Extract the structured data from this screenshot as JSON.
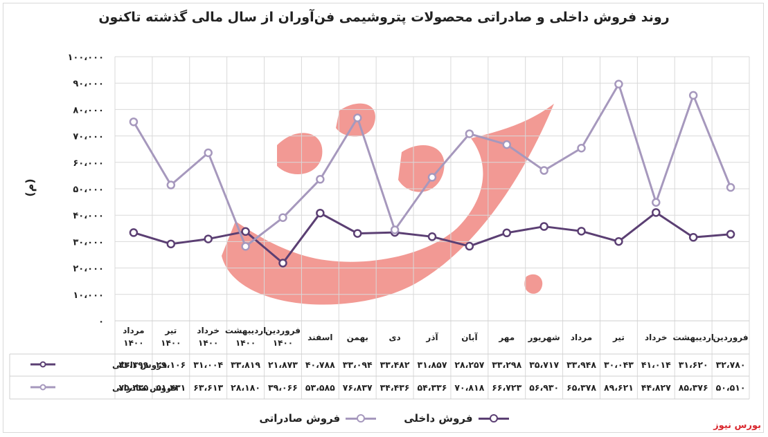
{
  "chart_data": {
    "type": "line",
    "title": "روند فروش داخلی و صادراتی محصولات پتروشیمی فن‌آوران از سال مالی گذشته تاکنون",
    "ylabel": "(م)",
    "ylim": [
      0,
      100000
    ],
    "yticks": [
      "۱۰۰،۰۰۰",
      "۹۰،۰۰۰",
      "۸۰،۰۰۰",
      "۷۰،۰۰۰",
      "۶۰،۰۰۰",
      "۵۰،۰۰۰",
      "۴۰،۰۰۰",
      "۳۰،۰۰۰",
      "۲۰،۰۰۰",
      "۱۰،۰۰۰",
      "۰"
    ],
    "grid": true,
    "legend_position": "bottom",
    "categories": [
      "فروردین",
      "اردیبهشت",
      "خرداد",
      "تیر",
      "مرداد",
      "شهریور",
      "مهر",
      "آبان",
      "آذر",
      "دی",
      "بهمن",
      "اسفند",
      "فروردین ۱۴۰۰",
      "اردیبهشت ۱۴۰۰",
      "خرداد ۱۴۰۰",
      "تیر ۱۴۰۰",
      "مرداد ۱۴۰۰"
    ],
    "series": [
      {
        "name": "فروش داخلی",
        "color": "#5b3f73",
        "values": [
          32780,
          31620,
          41014,
          30043,
          33948,
          35717,
          33298,
          28257,
          31857,
          33482,
          33094,
          40788,
          21873,
          33819,
          31004,
          29106,
          33399
        ],
        "labels": [
          "۳۲،۷۸۰",
          "۳۱،۶۲۰",
          "۴۱،۰۱۴",
          "۳۰،۰۴۳",
          "۳۳،۹۴۸",
          "۳۵،۷۱۷",
          "۳۳،۲۹۸",
          "۲۸،۲۵۷",
          "۳۱،۸۵۷",
          "۳۳،۴۸۲",
          "۳۳،۰۹۴",
          "۴۰،۷۸۸",
          "۲۱،۸۷۳",
          "۳۳،۸۱۹",
          "۳۱،۰۰۴",
          "۲۹،۱۰۶",
          "۳۳،۳۹۹"
        ]
      },
      {
        "name": "فروش صادراتی",
        "color": "#a698bd",
        "values": [
          50510,
          85376,
          44827,
          89621,
          65378,
          56930,
          66723,
          70818,
          54336,
          34436,
          76837,
          53585,
          39066,
          28180,
          63613,
          51431,
          75335
        ],
        "labels": [
          "۵۰،۵۱۰",
          "۸۵،۳۷۶",
          "۴۴،۸۲۷",
          "۸۹،۶۲۱",
          "۶۵،۳۷۸",
          "۵۶،۹۳۰",
          "۶۶،۷۲۳",
          "۷۰،۸۱۸",
          "۵۴،۳۳۶",
          "۳۴،۴۳۶",
          "۷۶،۸۳۷",
          "۵۳،۵۸۵",
          "۳۹،۰۶۶",
          "۲۸،۱۸۰",
          "۶۳،۶۱۳",
          "۵۱،۴۳۱",
          "۷۵،۳۳۵"
        ]
      }
    ]
  },
  "brand": "بورس نیوز",
  "watermark": "بورس نیوز"
}
